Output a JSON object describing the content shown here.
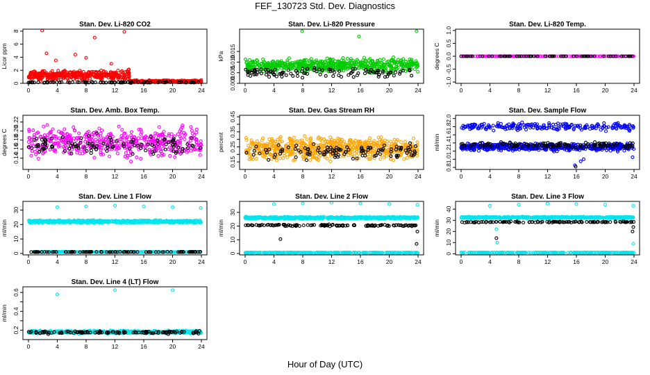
{
  "figure": {
    "title": "FEF_130723  Std. Dev. Diagnostics",
    "xlabel": "Hour of Day (UTC)"
  },
  "chart_data": [
    {
      "type": "scatter",
      "title": "Stan. Dev. Li-820 CO2",
      "ylabel": "Licor ppm",
      "xlim": [
        0,
        24
      ],
      "xticks": [
        0,
        4,
        8,
        12,
        16,
        20,
        24
      ],
      "ylim": [
        0,
        8.3
      ],
      "yticks": [
        0,
        2,
        4,
        6,
        8
      ],
      "ytick_labels": [
        "0",
        "2",
        "4",
        "6",
        "8"
      ],
      "series": [
        {
          "color": "#ff0000",
          "gen": {
            "base": 1.2,
            "spread": 1.1,
            "count": 380,
            "x0": 0,
            "x1": 14
          },
          "extra": [
            [
              1.9,
              8.1
            ],
            [
              9.2,
              7.0
            ],
            [
              13.3,
              7.9
            ],
            [
              2.5,
              4.6
            ],
            [
              3.8,
              3.5
            ],
            [
              6.5,
              4.4
            ],
            [
              8.0,
              3.9
            ],
            [
              11.5,
              3.0
            ]
          ]
        },
        {
          "color": "#ff0000",
          "gen": {
            "base": 0.3,
            "spread": 0.25,
            "count": 220,
            "x0": 14,
            "x1": 24
          }
        },
        {
          "color": "#000000",
          "gen": {
            "base": 0.15,
            "spread": 0.12,
            "count": 90,
            "x0": 0,
            "x1": 24
          }
        }
      ]
    },
    {
      "type": "scatter",
      "title": "Stan. Dev. Li-820 Pressure",
      "ylabel": "kPa",
      "xlim": [
        0,
        24
      ],
      "xticks": [
        0,
        4,
        8,
        12,
        16,
        20,
        24
      ],
      "ylim": [
        0,
        0.0255
      ],
      "yticks": [
        0,
        0.005,
        0.01,
        0.015
      ],
      "ytick_labels": [
        "0.000",
        "0.005",
        "0.010",
        "0.015"
      ],
      "series": [
        {
          "color": "#00cc00",
          "gen": {
            "base": 0.0085,
            "spread": 0.0045,
            "count": 600,
            "x0": 0,
            "x1": 24
          },
          "extra": [
            [
              7.9,
              0.0245
            ],
            [
              15.8,
              0.022
            ],
            [
              23.8,
              0.0245
            ]
          ]
        },
        {
          "color": "#000000",
          "gen": {
            "base": 0.005,
            "spread": 0.003,
            "count": 110,
            "x0": 0,
            "x1": 24
          }
        }
      ]
    },
    {
      "type": "scatter",
      "title": "Stan. Dev. Li-820 Temp.",
      "ylabel": "degrees C",
      "xlim": [
        0,
        24
      ],
      "xticks": [
        0,
        4,
        8,
        12,
        16,
        20,
        24
      ],
      "ylim": [
        -1.05,
        1.05
      ],
      "yticks": [
        -1,
        -0.5,
        0,
        0.5,
        1
      ],
      "ytick_labels": [
        "-1.0",
        "-0.5",
        "0.0",
        "0.5",
        "1.0"
      ],
      "series": [
        {
          "color": "#ff00ff",
          "gen": {
            "base": 0,
            "spread": 0,
            "count": 180,
            "x0": 0,
            "x1": 24
          }
        },
        {
          "color": "#000000",
          "gen": {
            "base": 0,
            "spread": 0,
            "count": 70,
            "x0": 0,
            "x1": 24
          }
        }
      ]
    },
    {
      "type": "scatter",
      "title": "Stan. Dev. Amb. Box Temp.",
      "ylabel": "degrees C",
      "xlim": [
        0,
        24
      ],
      "xticks": [
        0,
        4,
        8,
        12,
        16,
        20,
        24
      ],
      "ylim": [
        0.115,
        0.235
      ],
      "yticks": [
        0.14,
        0.16,
        0.18,
        0.2,
        0.22
      ],
      "ytick_labels": [
        "0.14",
        "0.16",
        "0.18",
        "0.20",
        "0.22"
      ],
      "series": [
        {
          "color": "#ff00ff",
          "gen": {
            "base": 0.175,
            "spread": 0.045,
            "count": 480,
            "x0": 0,
            "x1": 24
          }
        },
        {
          "color": "#000000",
          "gen": {
            "base": 0.168,
            "spread": 0.03,
            "count": 110,
            "x0": 0,
            "x1": 24
          }
        }
      ]
    },
    {
      "type": "scatter",
      "title": "Stan. Dev. Gas Stream RH",
      "ylabel": "percent",
      "xlim": [
        0,
        24
      ],
      "xticks": [
        0,
        4,
        8,
        12,
        16,
        20,
        24
      ],
      "ylim": [
        0.1,
        0.46
      ],
      "yticks": [
        0.15,
        0.2,
        0.25,
        0.3,
        0.35,
        0.4,
        0.45
      ],
      "ytick_labels": [
        "0.15",
        "",
        "0.25",
        "",
        "0.35",
        "",
        "0.45"
      ],
      "series": [
        {
          "color": "#ffa500",
          "gen": {
            "base": 0.24,
            "spread": 0.1,
            "count": 650,
            "x0": 0,
            "x1": 24
          }
        },
        {
          "color": "#000000",
          "gen": {
            "base": 0.22,
            "spread": 0.07,
            "count": 110,
            "x0": 0,
            "x1": 24
          }
        }
      ]
    },
    {
      "type": "scatter",
      "title": "Stan. Dev. Sample Flow",
      "ylabel": "ml/min",
      "xlim": [
        0,
        24
      ],
      "xticks": [
        0,
        4,
        8,
        12,
        16,
        20,
        24
      ],
      "ylim": [
        0.75,
        2.08
      ],
      "yticks": [
        0.8,
        1.0,
        1.2,
        1.4,
        1.6,
        1.8,
        2.0
      ],
      "ytick_labels": [
        "0.8",
        "1.0",
        "1.2",
        "1.4",
        "1.6",
        "1.8",
        "2.0"
      ],
      "series": [
        {
          "color": "#0000ff",
          "gen": {
            "base": 1.3,
            "spread": 0.12,
            "count": 520,
            "x0": 0,
            "x1": 24
          }
        },
        {
          "color": "#0000ff",
          "gen": {
            "base": 1.8,
            "spread": 0.12,
            "count": 220,
            "x0": 0,
            "x1": 24
          },
          "extra": [
            [
              15.8,
              0.85
            ],
            [
              16.6,
              0.95
            ],
            [
              17.0,
              1.0
            ],
            [
              23.8,
              1.05
            ]
          ]
        },
        {
          "color": "#000000",
          "gen": {
            "base": 1.35,
            "spread": 0.1,
            "count": 120,
            "x0": 0,
            "x1": 24
          },
          "extra": [
            [
              15.9,
              0.82
            ]
          ]
        }
      ]
    },
    {
      "type": "scatter",
      "title": "Stan. Dev. Line 1 Flow",
      "ylabel": "ml/min",
      "xlim": [
        0,
        24
      ],
      "xticks": [
        0,
        4,
        8,
        12,
        16,
        20,
        24
      ],
      "ylim": [
        -1,
        36
      ],
      "yticks": [
        0,
        10,
        20,
        30
      ],
      "ytick_labels": [
        "0",
        "10",
        "20",
        "30"
      ],
      "series": [
        {
          "color": "#00e5ee",
          "gen": {
            "base": 22,
            "spread": 1.2,
            "count": 650,
            "x0": 0,
            "x1": 24
          },
          "extra": [
            [
              4,
              32
            ],
            [
              8,
              32.5
            ],
            [
              12,
              33
            ],
            [
              16,
              32.5
            ],
            [
              20,
              32
            ],
            [
              23.9,
              31.5
            ]
          ]
        },
        {
          "color": "#00e5ee",
          "gen": {
            "base": 1,
            "spread": 0.3,
            "count": 250,
            "x0": 0,
            "x1": 24
          }
        },
        {
          "color": "#000000",
          "gen": {
            "base": 1,
            "spread": 0.2,
            "count": 100,
            "x0": 0,
            "x1": 24
          }
        }
      ]
    },
    {
      "type": "scatter",
      "title": "Stan. Dev. Line 2 Flow",
      "ylabel": "ml/min",
      "xlim": [
        0,
        24
      ],
      "xticks": [
        0,
        4,
        8,
        12,
        16,
        20,
        24
      ],
      "ylim": [
        -1,
        38
      ],
      "yticks": [
        0,
        10,
        20,
        30
      ],
      "ytick_labels": [
        "0",
        "10",
        "20",
        "30"
      ],
      "series": [
        {
          "color": "#00e5ee",
          "gen": {
            "base": 26,
            "spread": 1.0,
            "count": 650,
            "x0": 0,
            "x1": 24
          },
          "extra": [
            [
              4,
              36
            ],
            [
              8,
              36.5
            ],
            [
              12,
              37
            ],
            [
              16,
              36.5
            ],
            [
              20,
              36
            ],
            [
              23.9,
              35.5
            ]
          ]
        },
        {
          "color": "#00e5ee",
          "gen": {
            "base": 0.6,
            "spread": 0.3,
            "count": 250,
            "x0": 0,
            "x1": 24
          }
        },
        {
          "color": "#000000",
          "gen": {
            "base": 20.5,
            "spread": 0.8,
            "count": 120,
            "x0": 0,
            "x1": 24
          },
          "extra": [
            [
              4.9,
              10.5
            ],
            [
              23.8,
              7
            ],
            [
              23.9,
              16
            ]
          ]
        }
      ]
    },
    {
      "type": "scatter",
      "title": "Stan. Dev. Line 3 Flow",
      "ylabel": "ml/min",
      "xlim": [
        0,
        24
      ],
      "xticks": [
        0,
        4,
        8,
        12,
        16,
        20,
        24
      ],
      "ylim": [
        -1,
        47
      ],
      "yticks": [
        0,
        10,
        20,
        30,
        40
      ],
      "ytick_labels": [
        "0",
        "10",
        "20",
        "30",
        "40"
      ],
      "series": [
        {
          "color": "#00e5ee",
          "gen": {
            "base": 32.5,
            "spread": 1.0,
            "count": 650,
            "x0": 0,
            "x1": 24
          },
          "extra": [
            [
              4,
              43
            ],
            [
              8,
              44
            ],
            [
              12,
              45
            ],
            [
              16,
              44.5
            ],
            [
              20,
              44
            ],
            [
              23.9,
              43
            ],
            [
              4.9,
              22
            ],
            [
              5.0,
              10
            ],
            [
              23.9,
              9
            ]
          ]
        },
        {
          "color": "#00e5ee",
          "gen": {
            "base": 1,
            "spread": 0.3,
            "count": 250,
            "x0": 0,
            "x1": 24
          }
        },
        {
          "color": "#000000",
          "gen": {
            "base": 28.5,
            "spread": 0.8,
            "count": 120,
            "x0": 0,
            "x1": 24
          },
          "extra": [
            [
              4.9,
              14
            ],
            [
              23.8,
              20
            ],
            [
              23.9,
              24
            ]
          ]
        }
      ]
    },
    {
      "type": "scatter",
      "title": "Stan. Dev. Line 4 (LT) Flow",
      "ylabel": "ml/min",
      "xlim": [
        0,
        24
      ],
      "xticks": [
        0,
        4,
        8,
        12,
        16,
        20,
        24
      ],
      "ylim": [
        0.1,
        0.66
      ],
      "yticks": [
        0.2,
        0.3,
        0.4,
        0.5,
        0.6
      ],
      "ytick_labels": [
        "0.2",
        "",
        "0.4",
        "",
        "0.6"
      ],
      "series": [
        {
          "color": "#00e5ee",
          "gen": {
            "base": 0.18,
            "spread": 0.02,
            "count": 650,
            "x0": 0,
            "x1": 24
          },
          "extra": [
            [
              4,
              0.58
            ],
            [
              12,
              0.625
            ],
            [
              20,
              0.625
            ]
          ]
        },
        {
          "color": "#000000",
          "gen": {
            "base": 0.175,
            "spread": 0.02,
            "count": 120,
            "x0": 0,
            "x1": 24
          }
        }
      ]
    }
  ]
}
